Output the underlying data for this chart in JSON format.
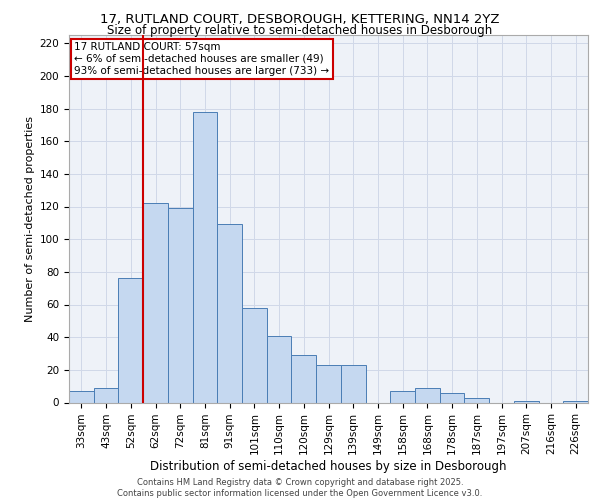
{
  "title": "17, RUTLAND COURT, DESBOROUGH, KETTERING, NN14 2YZ",
  "subtitle": "Size of property relative to semi-detached houses in Desborough",
  "xlabel": "Distribution of semi-detached houses by size in Desborough",
  "ylabel": "Number of semi-detached properties",
  "categories": [
    "33sqm",
    "43sqm",
    "52sqm",
    "62sqm",
    "72sqm",
    "81sqm",
    "91sqm",
    "101sqm",
    "110sqm",
    "120sqm",
    "129sqm",
    "139sqm",
    "149sqm",
    "158sqm",
    "168sqm",
    "178sqm",
    "187sqm",
    "197sqm",
    "207sqm",
    "216sqm",
    "226sqm"
  ],
  "values": [
    7,
    9,
    76,
    122,
    119,
    178,
    109,
    58,
    41,
    29,
    23,
    23,
    0,
    7,
    9,
    6,
    3,
    0,
    1,
    0,
    1
  ],
  "bar_color": "#c5d8f0",
  "bar_edge_color": "#4a7db5",
  "grid_color": "#d0d8e8",
  "background_color": "#eef2f8",
  "vline_color": "#cc0000",
  "vline_pos": 2.5,
  "annotation_text": "17 RUTLAND COURT: 57sqm\n← 6% of semi-detached houses are smaller (49)\n93% of semi-detached houses are larger (733) →",
  "annotation_box_color": "#ffffff",
  "annotation_border_color": "#cc0000",
  "footer_text": "Contains HM Land Registry data © Crown copyright and database right 2025.\nContains public sector information licensed under the Open Government Licence v3.0.",
  "ylim": [
    0,
    225
  ],
  "yticks": [
    0,
    20,
    40,
    60,
    80,
    100,
    120,
    140,
    160,
    180,
    200,
    220
  ],
  "title_fontsize": 9.5,
  "subtitle_fontsize": 8.5,
  "ylabel_fontsize": 8,
  "xlabel_fontsize": 8.5,
  "tick_fontsize": 7.5,
  "footer_fontsize": 6
}
